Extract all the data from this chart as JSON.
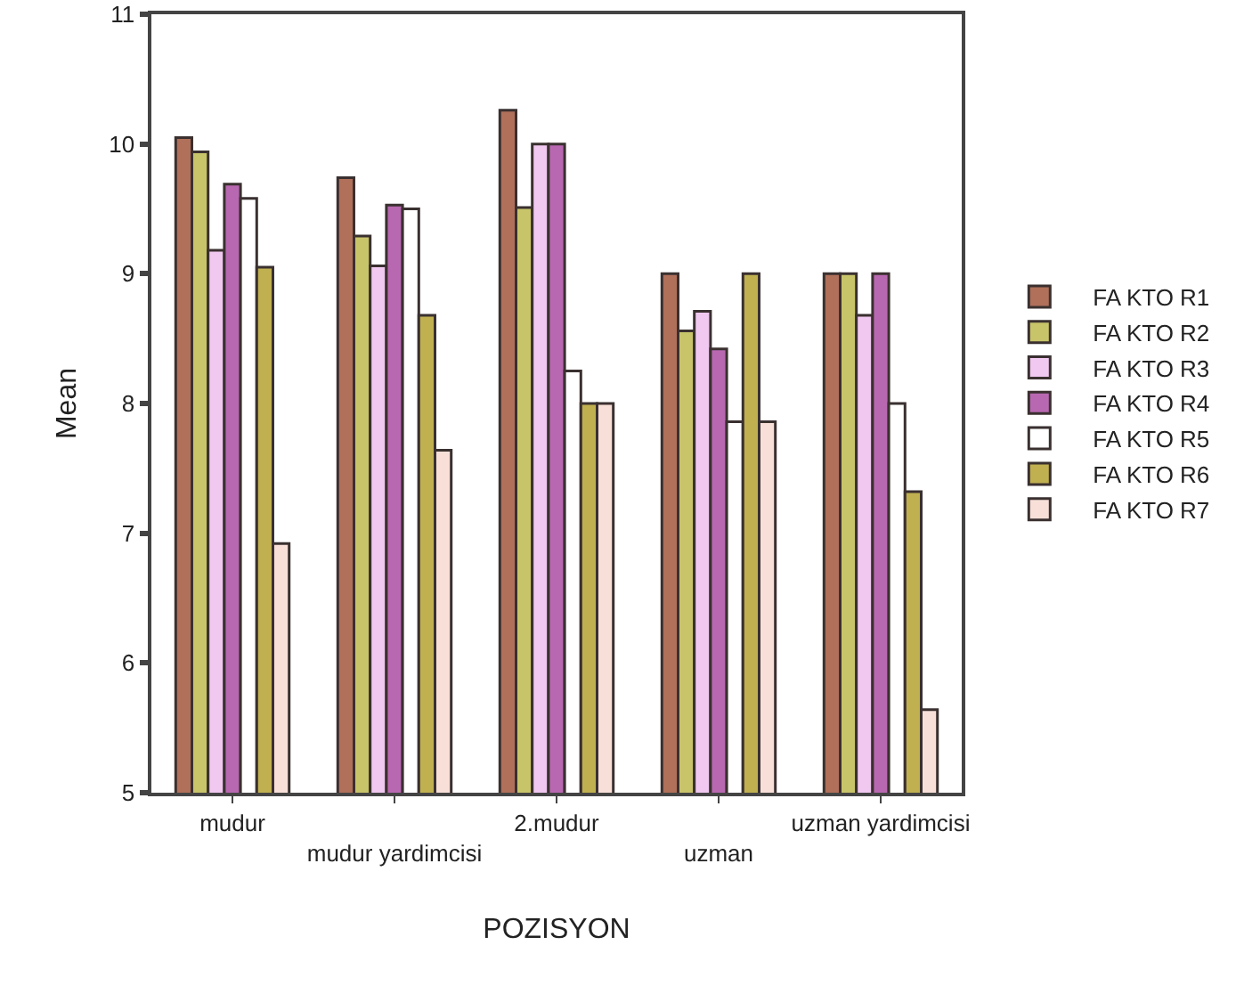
{
  "chart_data": {
    "type": "bar",
    "xlabel": "POZISYON",
    "ylabel": "Mean",
    "categories": [
      "mudur",
      "mudur yardimcisi",
      "2.mudur",
      "uzman",
      "uzman yardimcisi"
    ],
    "series": [
      {
        "name": "FA KTO R1",
        "color": "#b0705a",
        "values": [
          10.05,
          9.74,
          10.26,
          9.0,
          9.0
        ]
      },
      {
        "name": "FA KTO R2",
        "color": "#c8c46a",
        "values": [
          9.94,
          9.29,
          9.51,
          8.56,
          9.0
        ]
      },
      {
        "name": "FA KTO R3",
        "color": "#f0c8f0",
        "values": [
          9.18,
          9.06,
          10.0,
          8.71,
          8.68
        ]
      },
      {
        "name": "FA KTO R4",
        "color": "#b868b0",
        "values": [
          9.69,
          9.53,
          10.0,
          8.42,
          9.0
        ]
      },
      {
        "name": "FA KTO R5",
        "color": "#ffffff",
        "values": [
          9.58,
          9.5,
          8.25,
          7.86,
          8.0
        ]
      },
      {
        "name": "FA KTO R6",
        "color": "#c0b050",
        "values": [
          9.05,
          8.68,
          8.0,
          9.0,
          7.32
        ]
      },
      {
        "name": "FA KTO R7",
        "color": "#f8e0d8",
        "values": [
          6.92,
          7.64,
          8.0,
          7.86,
          5.64
        ]
      }
    ],
    "ylim": [
      5,
      11
    ],
    "yticks": [
      5,
      6,
      7,
      8,
      9,
      10,
      11
    ],
    "grid": false,
    "legend": "right"
  }
}
